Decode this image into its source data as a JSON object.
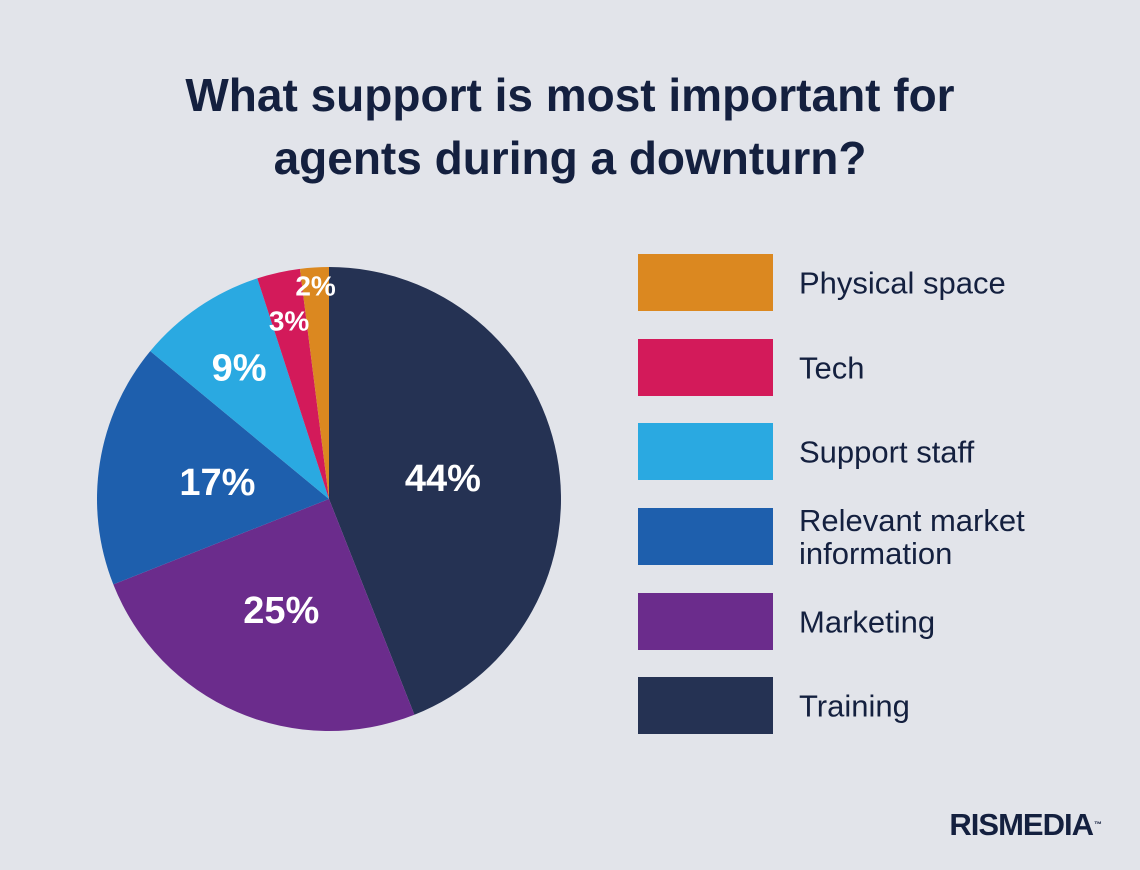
{
  "title_lines": [
    "What support is most important for",
    "agents during a downturn?"
  ],
  "logo": {
    "text": "RISMEDIA",
    "tm": "™"
  },
  "chart_data": {
    "type": "pie",
    "start": "12 o'clock, clockwise",
    "legend_position": "right",
    "slices": [
      {
        "label": "Training",
        "value": 44,
        "display": "44%",
        "color": "#253253"
      },
      {
        "label": "Marketing",
        "value": 25,
        "display": "25%",
        "color": "#6b2c8c"
      },
      {
        "label": "Relevant market information",
        "value": 17,
        "display": "17%",
        "color": "#1e5fad"
      },
      {
        "label": "Support staff",
        "value": 9,
        "display": "9%",
        "color": "#2aa9e1"
      },
      {
        "label": "Tech",
        "value": 3,
        "display": "3%",
        "color": "#d31a5a"
      },
      {
        "label": "Physical space",
        "value": 2,
        "display": "2%",
        "color": "#db8820"
      }
    ]
  },
  "legend": [
    {
      "label": "Physical space",
      "color": "#db8820"
    },
    {
      "label": "Tech",
      "color": "#d31a5a"
    },
    {
      "label": "Support staff",
      "color": "#2aa9e1"
    },
    {
      "label": "Relevant market information",
      "color": "#1e5fad"
    },
    {
      "label": "Marketing",
      "color": "#6b2c8c"
    },
    {
      "label": "Training",
      "color": "#253253"
    }
  ]
}
